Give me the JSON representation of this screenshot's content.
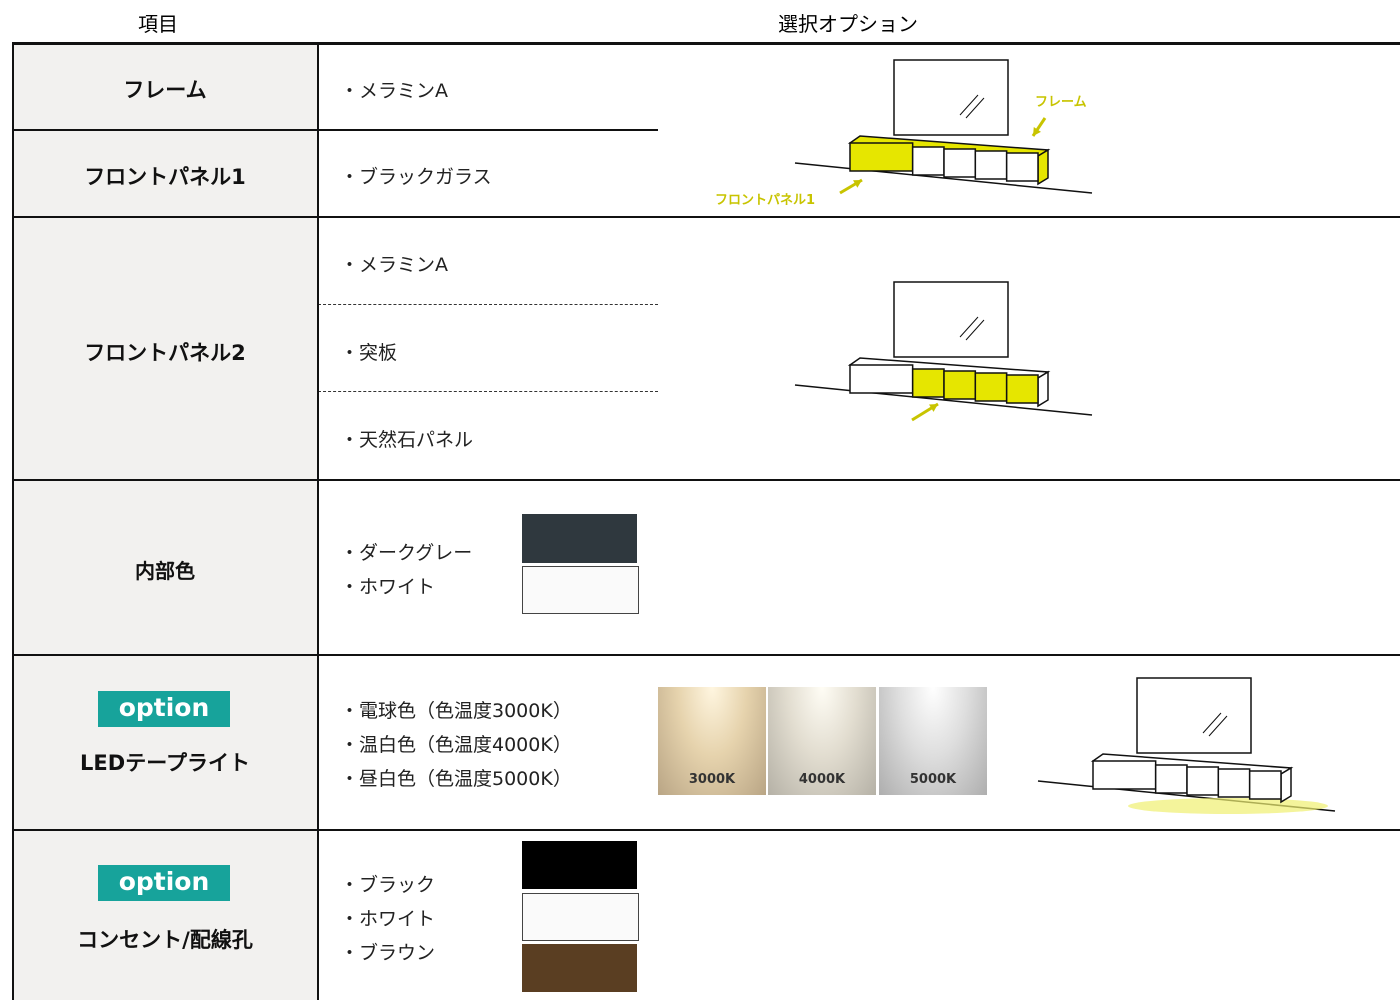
{
  "header": {
    "item": "項目",
    "options": "選択オプション"
  },
  "rows": [
    {
      "label": "フレーム",
      "options": [
        "・メラミンA"
      ]
    },
    {
      "label": "フロントパネル1",
      "options": [
        "・ブラックガラス"
      ]
    },
    {
      "label": "フロントパネル2",
      "options": [
        "・メラミンA",
        "・突板",
        "・天然石パネル"
      ]
    },
    {
      "label": "内部色",
      "options": [
        "・ダークグレー",
        "・ホワイト"
      ]
    },
    {
      "badge": "option",
      "label": "LEDテープライト",
      "options": [
        "・電球色（色温度3000K）",
        "・温白色（色温度4000K）",
        "・昼白色（色温度5000K）"
      ],
      "swatches": [
        "3000K",
        "4000K",
        "5000K"
      ]
    },
    {
      "badge": "option",
      "label": "コンセント/配線孔",
      "options": [
        "・ブラック",
        "・ホワイト",
        "・ブラウン"
      ]
    }
  ],
  "illustration": {
    "frame_label": "フレーム",
    "panel_label": "フロントパネル1"
  }
}
